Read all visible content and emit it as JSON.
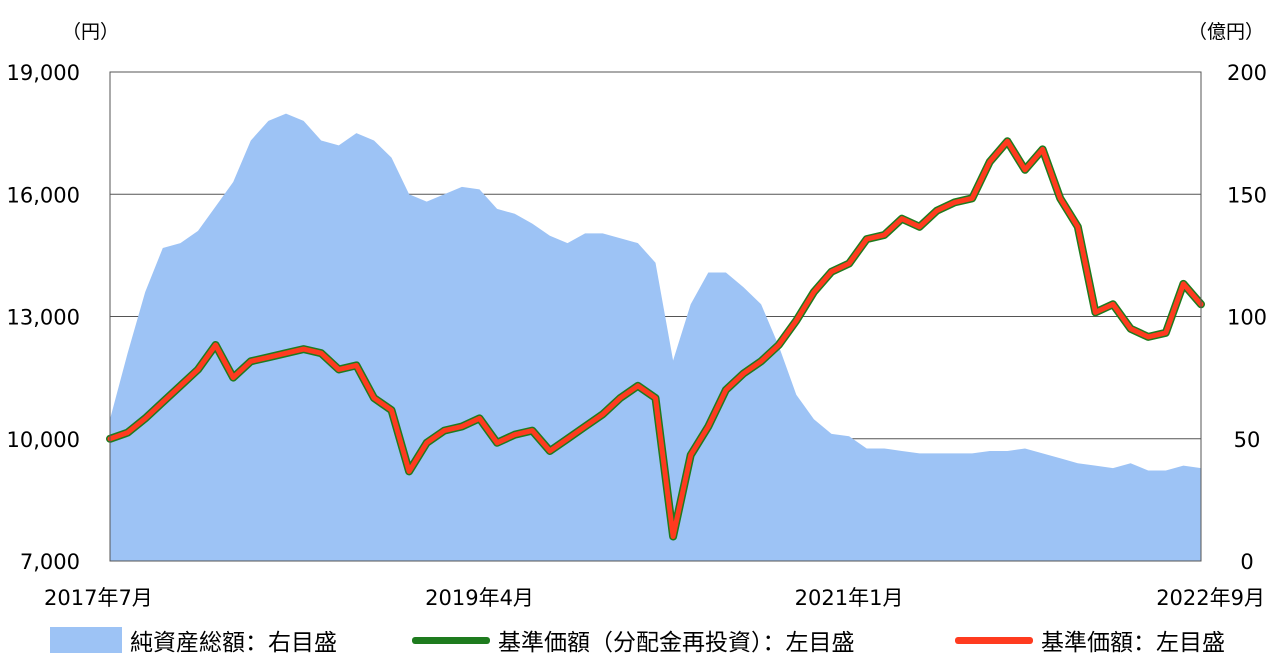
{
  "chart_data": {
    "type": "line",
    "left_axis": {
      "unit": "（円）",
      "ticks": [
        7000,
        10000,
        13000,
        16000,
        19000
      ],
      "tick_labels": [
        "7,000",
        "10,000",
        "13,000",
        "16,000",
        "19,000"
      ],
      "range": [
        7000,
        19000
      ]
    },
    "right_axis": {
      "unit": "（億円）",
      "ticks": [
        0,
        50,
        100,
        150,
        200
      ],
      "tick_labels": [
        "0",
        "50",
        "100",
        "150",
        "200"
      ],
      "range": [
        0,
        200
      ]
    },
    "x_axis": {
      "range": [
        "2017-07",
        "2022-09"
      ],
      "tick_labels": [
        "2017年7月",
        "2019年4月",
        "2021年1月",
        "2022年9月"
      ],
      "tick_positions": [
        "2017-07",
        "2019-04",
        "2021-01",
        "2022-09"
      ]
    },
    "grid": true,
    "legend": "bottom",
    "series": [
      {
        "name": "純資産総額：右目盛",
        "axis": "right",
        "kind": "area",
        "color": "#9DC3F5",
        "points": [
          [
            "2017-07",
            58
          ],
          [
            "2017-08",
            85
          ],
          [
            "2017-09",
            110
          ],
          [
            "2017-10",
            128
          ],
          [
            "2017-11",
            130
          ],
          [
            "2017-12",
            135
          ],
          [
            "2018-01",
            145
          ],
          [
            "2018-02",
            155
          ],
          [
            "2018-03",
            172
          ],
          [
            "2018-04",
            180
          ],
          [
            "2018-05",
            183
          ],
          [
            "2018-06",
            180
          ],
          [
            "2018-07",
            172
          ],
          [
            "2018-08",
            170
          ],
          [
            "2018-09",
            175
          ],
          [
            "2018-10",
            172
          ],
          [
            "2018-11",
            165
          ],
          [
            "2018-12",
            150
          ],
          [
            "2019-01",
            147
          ],
          [
            "2019-02",
            150
          ],
          [
            "2019-03",
            153
          ],
          [
            "2019-04",
            152
          ],
          [
            "2019-05",
            144
          ],
          [
            "2019-06",
            142
          ],
          [
            "2019-07",
            138
          ],
          [
            "2019-08",
            133
          ],
          [
            "2019-09",
            130
          ],
          [
            "2019-10",
            134
          ],
          [
            "2019-11",
            134
          ],
          [
            "2019-12",
            132
          ],
          [
            "2020-01",
            130
          ],
          [
            "2020-02",
            122
          ],
          [
            "2020-03",
            82
          ],
          [
            "2020-04",
            105
          ],
          [
            "2020-05",
            118
          ],
          [
            "2020-06",
            118
          ],
          [
            "2020-07",
            112
          ],
          [
            "2020-08",
            105
          ],
          [
            "2020-09",
            88
          ],
          [
            "2020-10",
            68
          ],
          [
            "2020-11",
            58
          ],
          [
            "2020-12",
            52
          ],
          [
            "2021-01",
            51
          ],
          [
            "2021-02",
            46
          ],
          [
            "2021-03",
            46
          ],
          [
            "2021-04",
            45
          ],
          [
            "2021-05",
            44
          ],
          [
            "2021-06",
            44
          ],
          [
            "2021-07",
            44
          ],
          [
            "2021-08",
            44
          ],
          [
            "2021-09",
            45
          ],
          [
            "2021-10",
            45
          ],
          [
            "2021-11",
            46
          ],
          [
            "2021-12",
            44
          ],
          [
            "2022-01",
            42
          ],
          [
            "2022-02",
            40
          ],
          [
            "2022-03",
            39
          ],
          [
            "2022-04",
            38
          ],
          [
            "2022-05",
            40
          ],
          [
            "2022-06",
            37
          ],
          [
            "2022-07",
            37
          ],
          [
            "2022-08",
            39
          ],
          [
            "2022-09",
            38
          ]
        ]
      },
      {
        "name": "基準価額（分配金再投資）：左目盛",
        "axis": "left",
        "kind": "line",
        "color": "#1E7B1E",
        "points": [
          [
            "2017-07",
            10000
          ],
          [
            "2017-08",
            10150
          ],
          [
            "2017-09",
            10500
          ],
          [
            "2017-10",
            10900
          ],
          [
            "2017-11",
            11300
          ],
          [
            "2017-12",
            11700
          ],
          [
            "2018-01",
            12300
          ],
          [
            "2018-02",
            11500
          ],
          [
            "2018-03",
            11900
          ],
          [
            "2018-04",
            12000
          ],
          [
            "2018-05",
            12100
          ],
          [
            "2018-06",
            12200
          ],
          [
            "2018-07",
            12100
          ],
          [
            "2018-08",
            11700
          ],
          [
            "2018-09",
            11800
          ],
          [
            "2018-10",
            11000
          ],
          [
            "2018-11",
            10700
          ],
          [
            "2018-12",
            9200
          ],
          [
            "2019-01",
            9900
          ],
          [
            "2019-02",
            10200
          ],
          [
            "2019-03",
            10300
          ],
          [
            "2019-04",
            10500
          ],
          [
            "2019-05",
            9900
          ],
          [
            "2019-06",
            10100
          ],
          [
            "2019-07",
            10200
          ],
          [
            "2019-08",
            9700
          ],
          [
            "2019-09",
            10000
          ],
          [
            "2019-10",
            10300
          ],
          [
            "2019-11",
            10600
          ],
          [
            "2019-12",
            11000
          ],
          [
            "2020-01",
            11300
          ],
          [
            "2020-02",
            11000
          ],
          [
            "2020-03",
            7600
          ],
          [
            "2020-04",
            9600
          ],
          [
            "2020-05",
            10300
          ],
          [
            "2020-06",
            11200
          ],
          [
            "2020-07",
            11600
          ],
          [
            "2020-08",
            11900
          ],
          [
            "2020-09",
            12300
          ],
          [
            "2020-10",
            12900
          ],
          [
            "2020-11",
            13600
          ],
          [
            "2020-12",
            14100
          ],
          [
            "2021-01",
            14300
          ],
          [
            "2021-02",
            14900
          ],
          [
            "2021-03",
            15000
          ],
          [
            "2021-04",
            15400
          ],
          [
            "2021-05",
            15200
          ],
          [
            "2021-06",
            15600
          ],
          [
            "2021-07",
            15800
          ],
          [
            "2021-08",
            15900
          ],
          [
            "2021-09",
            16800
          ],
          [
            "2021-10",
            17300
          ],
          [
            "2021-11",
            16600
          ],
          [
            "2021-12",
            17100
          ],
          [
            "2022-01",
            15900
          ],
          [
            "2022-02",
            15200
          ],
          [
            "2022-03",
            13100
          ],
          [
            "2022-04",
            13300
          ],
          [
            "2022-05",
            12700
          ],
          [
            "2022-06",
            12500
          ],
          [
            "2022-07",
            12600
          ],
          [
            "2022-08",
            13800
          ],
          [
            "2022-09",
            13300
          ]
        ]
      },
      {
        "name": "基準価額：左目盛",
        "axis": "left",
        "kind": "line",
        "color": "#FF3B1F",
        "points": [
          [
            "2017-07",
            10000
          ],
          [
            "2017-08",
            10150
          ],
          [
            "2017-09",
            10500
          ],
          [
            "2017-10",
            10900
          ],
          [
            "2017-11",
            11300
          ],
          [
            "2017-12",
            11700
          ],
          [
            "2018-01",
            12300
          ],
          [
            "2018-02",
            11500
          ],
          [
            "2018-03",
            11900
          ],
          [
            "2018-04",
            12000
          ],
          [
            "2018-05",
            12100
          ],
          [
            "2018-06",
            12200
          ],
          [
            "2018-07",
            12100
          ],
          [
            "2018-08",
            11700
          ],
          [
            "2018-09",
            11800
          ],
          [
            "2018-10",
            11000
          ],
          [
            "2018-11",
            10700
          ],
          [
            "2018-12",
            9200
          ],
          [
            "2019-01",
            9900
          ],
          [
            "2019-02",
            10200
          ],
          [
            "2019-03",
            10300
          ],
          [
            "2019-04",
            10500
          ],
          [
            "2019-05",
            9900
          ],
          [
            "2019-06",
            10100
          ],
          [
            "2019-07",
            10200
          ],
          [
            "2019-08",
            9700
          ],
          [
            "2019-09",
            10000
          ],
          [
            "2019-10",
            10300
          ],
          [
            "2019-11",
            10600
          ],
          [
            "2019-12",
            11000
          ],
          [
            "2020-01",
            11300
          ],
          [
            "2020-02",
            11000
          ],
          [
            "2020-03",
            7600
          ],
          [
            "2020-04",
            9600
          ],
          [
            "2020-05",
            10300
          ],
          [
            "2020-06",
            11200
          ],
          [
            "2020-07",
            11600
          ],
          [
            "2020-08",
            11900
          ],
          [
            "2020-09",
            12300
          ],
          [
            "2020-10",
            12900
          ],
          [
            "2020-11",
            13600
          ],
          [
            "2020-12",
            14100
          ],
          [
            "2021-01",
            14300
          ],
          [
            "2021-02",
            14900
          ],
          [
            "2021-03",
            15000
          ],
          [
            "2021-04",
            15400
          ],
          [
            "2021-05",
            15200
          ],
          [
            "2021-06",
            15600
          ],
          [
            "2021-07",
            15800
          ],
          [
            "2021-08",
            15900
          ],
          [
            "2021-09",
            16800
          ],
          [
            "2021-10",
            17300
          ],
          [
            "2021-11",
            16600
          ],
          [
            "2021-12",
            17100
          ],
          [
            "2022-01",
            15900
          ],
          [
            "2022-02",
            15200
          ],
          [
            "2022-03",
            13100
          ],
          [
            "2022-04",
            13300
          ],
          [
            "2022-05",
            12700
          ],
          [
            "2022-06",
            12500
          ],
          [
            "2022-07",
            12600
          ],
          [
            "2022-08",
            13800
          ],
          [
            "2022-09",
            13300
          ]
        ]
      }
    ]
  },
  "legend": {
    "items": [
      {
        "label": "純資産総額：右目盛",
        "color": "#9DC3F5"
      },
      {
        "label": "基準価額（分配金再投資）：左目盛",
        "color": "#1E7B1E"
      },
      {
        "label": "基準価額：左目盛",
        "color": "#FF3B1F"
      }
    ]
  }
}
